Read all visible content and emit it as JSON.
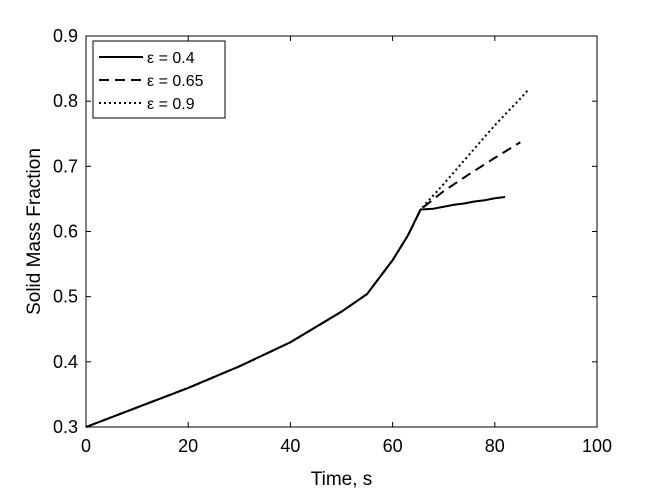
{
  "chart_data": {
    "type": "line",
    "xlabel": "Time, s",
    "ylabel": "Solid Mass Fraction",
    "xlim": [
      0,
      100
    ],
    "ylim": [
      0.3,
      0.9
    ],
    "xticks": [
      0,
      20,
      40,
      60,
      80,
      100
    ],
    "yticks": [
      0.3,
      0.4,
      0.5,
      0.6,
      0.7,
      0.8,
      0.9
    ],
    "xtick_labels": [
      "0",
      "20",
      "40",
      "60",
      "80",
      "100"
    ],
    "ytick_labels": [
      "0.3",
      "0.4",
      "0.5",
      "0.6",
      "0.7",
      "0.8",
      "0.9"
    ],
    "grid": false,
    "legend_position": "top-left",
    "series": [
      {
        "name": "ε = 0.4",
        "style": "solid",
        "x": [
          0,
          10,
          20,
          30,
          40,
          50,
          55,
          60,
          63,
          65.5,
          66,
          68,
          70,
          72,
          74,
          76,
          78,
          80,
          82
        ],
        "y": [
          0.3,
          0.33,
          0.36,
          0.393,
          0.43,
          0.477,
          0.504,
          0.556,
          0.594,
          0.634,
          0.634,
          0.635,
          0.638,
          0.641,
          0.643,
          0.646,
          0.648,
          0.651,
          0.653
        ]
      },
      {
        "name": "ε = 0.65",
        "style": "dashed",
        "x": [
          0,
          10,
          20,
          30,
          40,
          50,
          55,
          60,
          63,
          65.5,
          70,
          75,
          80,
          85
        ],
        "y": [
          0.3,
          0.33,
          0.36,
          0.393,
          0.43,
          0.477,
          0.504,
          0.556,
          0.594,
          0.634,
          0.662,
          0.688,
          0.713,
          0.737
        ]
      },
      {
        "name": "ε = 0.9",
        "style": "dotted",
        "x": [
          0,
          10,
          20,
          30,
          40,
          50,
          55,
          60,
          63,
          65.5,
          70,
          75,
          80,
          85,
          86.5
        ],
        "y": [
          0.3,
          0.33,
          0.36,
          0.393,
          0.43,
          0.477,
          0.504,
          0.556,
          0.594,
          0.634,
          0.673,
          0.718,
          0.763,
          0.804,
          0.817
        ]
      }
    ]
  }
}
